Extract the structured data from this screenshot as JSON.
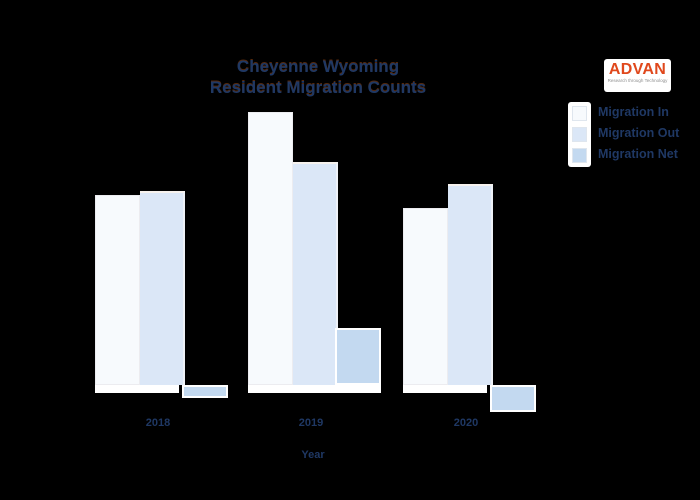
{
  "background": "#000000",
  "title": {
    "line1": "Cheyenne Wyoming",
    "line2": "Resident Migration Counts",
    "color": "#1f3864"
  },
  "logo": {
    "name": "ADVAN",
    "tagline": "Research through Technology",
    "name_color": "#e0481c",
    "box_color": "#ffffff"
  },
  "legend": {
    "position": "top-right",
    "items": [
      {
        "label": "Migration In",
        "color": "#f7fafd"
      },
      {
        "label": "Migration Out",
        "color": "#dbe7f7"
      },
      {
        "label": "Migration Net",
        "color": "#c3d9f0"
      }
    ]
  },
  "xaxis": {
    "label": "Year",
    "ticks": [
      "2018",
      "2019",
      "2020"
    ]
  },
  "chart_data": {
    "type": "bar",
    "title": "Cheyenne Wyoming Resident Migration Counts",
    "xlabel": "Year",
    "ylabel": "",
    "categories": [
      "2018",
      "2019",
      "2020"
    ],
    "series": [
      {
        "name": "Migration In",
        "values": [
          190,
          273,
          177
        ]
      },
      {
        "name": "Migration Out",
        "values": [
          194,
          223,
          201
        ]
      },
      {
        "name": "Migration Net",
        "values": [
          -13,
          57,
          -27
        ]
      }
    ],
    "value_axis_visible": false,
    "units": "relative units (no value axis shown in image)",
    "grid": false,
    "legend_position": "top-right",
    "baseline": 0
  }
}
